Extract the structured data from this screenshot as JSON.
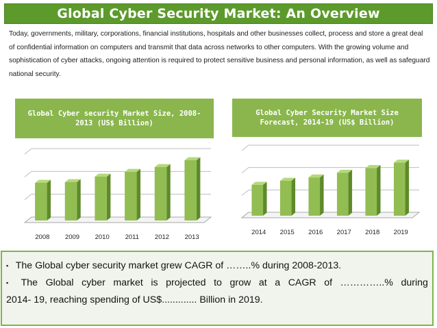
{
  "title": "Global Cyber Security Market: An Overview",
  "intro": "Today, governments, military, corporations, financial institutions, hospitals and other businesses collect, process and store a great deal of confidential information on computers and transmit that data across networks to other computers. With the growing volume and sophistication of cyber attacks, ongoing attention is required to protect sensitive business and personal information, as well as safeguard national security.",
  "colors": {
    "title_bg": "#5c9a2c",
    "header_bg": "#8ab64d",
    "bar_front": "#92bd52",
    "bar_side": "#5e8a2a",
    "panel_bg": "#f1f4ec",
    "panel_border": "#7fb34c"
  },
  "chart_data": [
    {
      "type": "bar",
      "title": "Global Cyber security Market Size, 2008-2013 (US$ Billion)",
      "categories": [
        "2008",
        "2009",
        "2010",
        "2011",
        "2012",
        "2013"
      ],
      "values": [
        55,
        56,
        64,
        71,
        78,
        88
      ],
      "ylim": [
        0,
        100
      ],
      "gridlines": 3,
      "xlabel": "",
      "ylabel": ""
    },
    {
      "type": "bar",
      "title": "Global Cyber Security Market Size Forecast, 2014-19 (US$ Billion)",
      "categories": [
        "2014",
        "2015",
        "2016",
        "2017",
        "2018",
        "2019"
      ],
      "values": [
        46,
        52,
        57,
        64,
        71,
        79
      ],
      "ylim": [
        0,
        100
      ],
      "gridlines": 3,
      "xlabel": "",
      "ylabel": ""
    }
  ],
  "summary": {
    "bullet_symbol": "▪",
    "line1": "The Global cyber security market grew CAGR of ……..% during 2008-2013.",
    "line2_words": [
      "The",
      "Global",
      "cyber",
      "market",
      "is",
      "projected",
      "to",
      "grow",
      "at",
      "a",
      "CAGR",
      "of",
      "…………..%",
      "during"
    ],
    "line3": "2014-  19, reaching spending of US$............. Billion in 2019."
  }
}
